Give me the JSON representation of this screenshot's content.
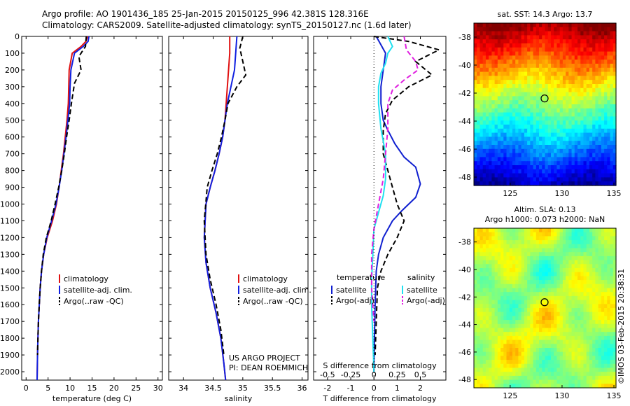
{
  "header": {
    "line1": "Argo profile: AO 1901436_185 25-Jan-2015 20150125_996 42.381S 128.316E",
    "line2": "Climatology: CARS2009. Satellite-adjusted climatology: synTS_20150127.nc (1.6d later)"
  },
  "credit": {
    "project": "US ARGO PROJECT",
    "pi": "PI: DEAN ROEMMICH"
  },
  "watermark": "©IMOS 03-Feb-2015 20:38:31",
  "colors": {
    "climatology": "#e01010",
    "satellite": "#1020e0",
    "argo": "#000000",
    "satellite_T": "#1020d0",
    "satellite_S": "#20e0f0",
    "argo_S": "#e020e0"
  },
  "chart_data": [
    {
      "type": "line",
      "id": "temperature",
      "xlabel": "temperature (deg C)",
      "xlim": [
        -1,
        31
      ],
      "xticks": [
        0,
        5,
        10,
        15,
        20,
        25,
        30
      ],
      "ylim": [
        0,
        2050
      ],
      "yticks": [
        0,
        100,
        200,
        300,
        400,
        500,
        600,
        700,
        800,
        900,
        1000,
        1100,
        1200,
        1300,
        1400,
        1500,
        1600,
        1700,
        1800,
        1900,
        2000
      ],
      "legend": [
        "climatology",
        "satellite-adj. clim.",
        "Argo(..raw -QC)"
      ],
      "series": [
        {
          "name": "climatology",
          "color": "climatology",
          "dash": false,
          "x": [
            14.0,
            13.6,
            12.5,
            10.5,
            9.8,
            9.7,
            9.6,
            9.3,
            8.9,
            8.5,
            8.0,
            7.5,
            6.9,
            6.0,
            4.8,
            4.0,
            3.5,
            3.2,
            3.0,
            2.8,
            2.7,
            2.6,
            2.5
          ],
          "y": [
            0,
            30,
            60,
            100,
            200,
            300,
            400,
            500,
            600,
            700,
            800,
            900,
            1000,
            1100,
            1200,
            1300,
            1400,
            1500,
            1600,
            1700,
            1800,
            1900,
            2050
          ]
        },
        {
          "name": "satellite-adj. clim.",
          "color": "satellite",
          "dash": false,
          "x": [
            14.3,
            14.1,
            13.0,
            11.0,
            10.2,
            10.0,
            9.9,
            9.5,
            9.1,
            8.6,
            8.1,
            7.5,
            6.8,
            5.8,
            4.7,
            4.0,
            3.5,
            3.2,
            3.0,
            2.8,
            2.7,
            2.6,
            2.5
          ],
          "y": [
            0,
            30,
            60,
            100,
            200,
            300,
            400,
            500,
            600,
            700,
            800,
            900,
            1000,
            1100,
            1200,
            1300,
            1400,
            1500,
            1600,
            1700,
            1800,
            1900,
            2050
          ]
        },
        {
          "name": "Argo(..raw -QC)",
          "color": "argo",
          "dash": true,
          "x": [
            13.7,
            13.6,
            13.5,
            12.0,
            12.5,
            11.0,
            10.3,
            9.8,
            9.2,
            8.7,
            8.1,
            7.4,
            6.6,
            5.7,
            4.6,
            3.9,
            3.5,
            3.2,
            3.0,
            2.8,
            2.7,
            2.6
          ],
          "y": [
            0,
            30,
            60,
            120,
            200,
            280,
            400,
            500,
            600,
            700,
            800,
            900,
            1000,
            1100,
            1200,
            1300,
            1400,
            1500,
            1600,
            1700,
            1800,
            1900
          ]
        }
      ]
    },
    {
      "type": "line",
      "id": "salinity",
      "xlabel": "salinity",
      "xlim": [
        33.75,
        36.1
      ],
      "xticks": [
        34,
        34.5,
        35,
        35.5,
        36
      ],
      "ylim": [
        0,
        2050
      ],
      "legend": [
        "climatology",
        "satellite-adj. clim.",
        "Argo(..raw -QC)"
      ],
      "series": [
        {
          "name": "climatology",
          "color": "climatology",
          "dash": false,
          "x": [
            34.78,
            34.78,
            34.76,
            34.74,
            34.72,
            34.7,
            34.66,
            34.6,
            34.53,
            34.45,
            34.38,
            34.35,
            34.38,
            34.45,
            34.55,
            34.63,
            34.68,
            34.71
          ],
          "y": [
            0,
            100,
            200,
            300,
            400,
            500,
            600,
            700,
            800,
            900,
            1000,
            1200,
            1350,
            1500,
            1650,
            1800,
            1950,
            2050
          ]
        },
        {
          "name": "satellite-adj. clim.",
          "color": "satellite",
          "dash": false,
          "x": [
            34.9,
            34.88,
            34.86,
            34.8,
            34.74,
            34.7,
            34.66,
            34.6,
            34.53,
            34.45,
            34.38,
            34.35,
            34.38,
            34.45,
            34.55,
            34.63,
            34.68,
            34.71
          ],
          "y": [
            0,
            100,
            200,
            300,
            400,
            500,
            600,
            700,
            800,
            900,
            1000,
            1200,
            1350,
            1500,
            1650,
            1800,
            1950,
            2050
          ]
        },
        {
          "name": "Argo(..raw -QC)",
          "color": "argo",
          "dash": true,
          "x": [
            35.0,
            34.95,
            35.0,
            35.05,
            34.9,
            34.75,
            34.7,
            34.64,
            34.57,
            34.48,
            34.4,
            34.35,
            34.38,
            34.45,
            34.55,
            34.63,
            34.68
          ],
          "y": [
            0,
            70,
            150,
            230,
            300,
            400,
            500,
            600,
            700,
            800,
            900,
            1100,
            1300,
            1450,
            1600,
            1750,
            1900
          ]
        }
      ]
    },
    {
      "type": "line",
      "id": "difference",
      "xlabel": "T difference from climatology",
      "xlabel_top": "S difference from climatology",
      "xlim": [
        -2.6,
        3.1
      ],
      "xticks": [
        -2,
        -1,
        0,
        1,
        2
      ],
      "xticks_top": [
        -0.5,
        -0.25,
        0,
        0.25,
        0.5
      ],
      "ylim": [
        0,
        2050
      ],
      "legend_titles": [
        "temperature",
        "salinity"
      ],
      "legend": [
        "satellite",
        "Argo(-adj)",
        "satellite",
        "Argo(-adj)"
      ],
      "series": [
        {
          "name": "satellite",
          "group": "temperature",
          "color": "satellite_T",
          "dash": false,
          "x": [
            0.1,
            0.3,
            0.5,
            0.4,
            0.3,
            0.3,
            0.4,
            0.6,
            0.9,
            1.3,
            1.8,
            2.0,
            1.8,
            1.2,
            0.8,
            0.4,
            0.2,
            0.1,
            0.05,
            0.02,
            0.0
          ],
          "y": [
            0,
            50,
            100,
            200,
            300,
            400,
            500,
            560,
            640,
            720,
            780,
            880,
            960,
            1040,
            1100,
            1200,
            1300,
            1400,
            1600,
            1800,
            2000
          ]
        },
        {
          "name": "Argo(-adj)",
          "group": "temperature",
          "color": "argo",
          "dash": true,
          "x": [
            0.0,
            1.5,
            2.8,
            1.8,
            2.5,
            1.5,
            0.8,
            0.5,
            0.4,
            0.4,
            0.6,
            0.8,
            1.0,
            1.3,
            1.0,
            0.6,
            0.3,
            0.15,
            0.1,
            0.05
          ],
          "y": [
            0,
            30,
            80,
            150,
            230,
            300,
            380,
            460,
            560,
            700,
            800,
            900,
            1000,
            1100,
            1200,
            1300,
            1400,
            1500,
            1700,
            1900
          ]
        },
        {
          "name": "satellite",
          "group": "salinity",
          "color": "satellite_S",
          "dash": false,
          "x": [
            0.6,
            0.8,
            0.6,
            0.5,
            0.3,
            0.2,
            0.2,
            0.3,
            0.5,
            0.5,
            0.4,
            0.2,
            0.0,
            -0.05,
            -0.1,
            -0.1,
            -0.05,
            0.0
          ],
          "y": [
            0,
            60,
            100,
            160,
            220,
            300,
            400,
            550,
            700,
            850,
            950,
            1050,
            1150,
            1300,
            1450,
            1600,
            1800,
            2000
          ]
        },
        {
          "name": "Argo(-adj)",
          "group": "salinity",
          "color": "argo_S",
          "dash": true,
          "x": [
            1.3,
            1.4,
            1.8,
            1.9,
            1.3,
            0.8,
            0.6,
            0.6,
            0.5,
            0.4,
            0.2,
            0.0,
            -0.1,
            -0.1,
            0.0
          ],
          "y": [
            0,
            80,
            150,
            200,
            260,
            320,
            400,
            550,
            700,
            850,
            1000,
            1150,
            1300,
            1500,
            1700
          ]
        }
      ]
    },
    {
      "type": "heatmap",
      "id": "sst-map",
      "title": "sat. SST: 14.3 Argo: 13.7",
      "xlim": [
        121.5,
        135.2
      ],
      "ylim": [
        -48.6,
        -37.0
      ],
      "xticks": [
        125,
        130,
        135
      ],
      "yticks": [
        -38,
        -40,
        -42,
        -44,
        -46,
        -48
      ],
      "marker": {
        "lon": 128.316,
        "lat": -42.381
      },
      "colormap": "jet"
    },
    {
      "type": "heatmap",
      "id": "sla-map",
      "title": "Altim. SLA: 0.13",
      "subtitle": "Argo h1000: 0.073 h2000: NaN",
      "xlim": [
        121.5,
        135.2
      ],
      "ylim": [
        -48.6,
        -37.0
      ],
      "xticks": [
        125,
        130,
        135
      ],
      "yticks": [
        -38,
        -40,
        -42,
        -44,
        -46,
        -48
      ],
      "marker": {
        "lon": 128.316,
        "lat": -42.381
      },
      "colormap": "jet"
    }
  ]
}
